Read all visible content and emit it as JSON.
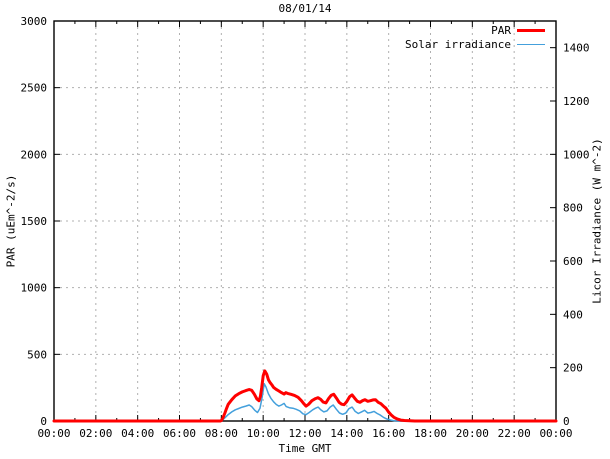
{
  "title": "08/01/14",
  "chart_data": {
    "type": "line",
    "title": "08/01/14",
    "xlabel": "Time GMT",
    "ylabel_left": "PAR (uEm^-2/s)",
    "ylabel_right": "Licor Irradiance (W m^-2)",
    "x_range_hours": [
      0,
      24
    ],
    "x_ticks": [
      {
        "hour": 0,
        "label": "00:00"
      },
      {
        "hour": 2,
        "label": "02:00"
      },
      {
        "hour": 4,
        "label": "04:00"
      },
      {
        "hour": 6,
        "label": "06:00"
      },
      {
        "hour": 8,
        "label": "08:00"
      },
      {
        "hour": 10,
        "label": "10:00"
      },
      {
        "hour": 12,
        "label": "12:00"
      },
      {
        "hour": 14,
        "label": "14:00"
      },
      {
        "hour": 16,
        "label": "16:00"
      },
      {
        "hour": 18,
        "label": "18:00"
      },
      {
        "hour": 20,
        "label": "20:00"
      },
      {
        "hour": 22,
        "label": "22:00"
      },
      {
        "hour": 24,
        "label": "00:00"
      }
    ],
    "x_minor_hours": [
      1,
      3,
      5,
      7,
      9,
      11,
      13,
      15,
      17,
      19,
      21,
      23
    ],
    "y_left": {
      "min": 0,
      "max": 3000,
      "ticks": [
        0,
        500,
        1000,
        1500,
        2000,
        2500,
        3000
      ]
    },
    "y_right": {
      "min": 0,
      "max": 1500,
      "ticks": [
        0,
        200,
        400,
        600,
        800,
        1000,
        1200,
        1400
      ]
    },
    "grid": {
      "color": "#b0b0b0",
      "vertical_hours": [
        2,
        4,
        6,
        8,
        10,
        12,
        14,
        16,
        18,
        20,
        22
      ],
      "horizontal_values": [
        500,
        1000,
        1500,
        2000,
        2500
      ]
    },
    "legend": {
      "position": "top-right"
    },
    "series": [
      {
        "name": "PAR",
        "color": "#ff0000",
        "axis": "left",
        "width": 3,
        "points": [
          [
            0,
            0
          ],
          [
            7.95,
            0
          ],
          [
            8.0,
            3
          ],
          [
            8.08,
            25
          ],
          [
            8.17,
            60
          ],
          [
            8.25,
            95
          ],
          [
            8.33,
            125
          ],
          [
            8.5,
            160
          ],
          [
            8.67,
            188
          ],
          [
            8.83,
            205
          ],
          [
            9.0,
            218
          ],
          [
            9.17,
            228
          ],
          [
            9.33,
            236
          ],
          [
            9.45,
            230
          ],
          [
            9.58,
            200
          ],
          [
            9.7,
            165
          ],
          [
            9.8,
            152
          ],
          [
            9.87,
            185
          ],
          [
            9.93,
            250
          ],
          [
            10.0,
            340
          ],
          [
            10.08,
            376
          ],
          [
            10.17,
            352
          ],
          [
            10.25,
            310
          ],
          [
            10.33,
            288
          ],
          [
            10.42,
            270
          ],
          [
            10.5,
            252
          ],
          [
            10.62,
            238
          ],
          [
            10.75,
            225
          ],
          [
            10.87,
            213
          ],
          [
            11.0,
            202
          ],
          [
            11.08,
            212
          ],
          [
            11.17,
            207
          ],
          [
            11.33,
            200
          ],
          [
            11.5,
            192
          ],
          [
            11.67,
            178
          ],
          [
            11.83,
            152
          ],
          [
            11.95,
            128
          ],
          [
            12.05,
            112
          ],
          [
            12.17,
            125
          ],
          [
            12.33,
            152
          ],
          [
            12.5,
            168
          ],
          [
            12.62,
            175
          ],
          [
            12.75,
            162
          ],
          [
            12.87,
            142
          ],
          [
            13.0,
            136
          ],
          [
            13.13,
            168
          ],
          [
            13.25,
            192
          ],
          [
            13.37,
            200
          ],
          [
            13.5,
            172
          ],
          [
            13.63,
            140
          ],
          [
            13.75,
            126
          ],
          [
            13.87,
            122
          ],
          [
            14.0,
            146
          ],
          [
            14.13,
            182
          ],
          [
            14.25,
            196
          ],
          [
            14.37,
            172
          ],
          [
            14.5,
            148
          ],
          [
            14.63,
            140
          ],
          [
            14.75,
            152
          ],
          [
            14.87,
            160
          ],
          [
            15.0,
            148
          ],
          [
            15.13,
            152
          ],
          [
            15.25,
            158
          ],
          [
            15.37,
            160
          ],
          [
            15.5,
            140
          ],
          [
            15.63,
            130
          ],
          [
            15.75,
            112
          ],
          [
            15.87,
            96
          ],
          [
            16.0,
            66
          ],
          [
            16.13,
            44
          ],
          [
            16.25,
            28
          ],
          [
            16.42,
            14
          ],
          [
            16.58,
            7
          ],
          [
            16.75,
            4
          ],
          [
            17.0,
            2
          ],
          [
            17.25,
            0
          ],
          [
            24,
            0
          ]
        ]
      },
      {
        "name": "Solar irradiance",
        "color": "#44a0dc",
        "axis": "right",
        "width": 1.5,
        "points": [
          [
            0,
            0
          ],
          [
            8.0,
            0
          ],
          [
            8.17,
            12
          ],
          [
            8.33,
            24
          ],
          [
            8.5,
            34
          ],
          [
            8.67,
            42
          ],
          [
            8.83,
            47
          ],
          [
            9.0,
            52
          ],
          [
            9.17,
            56
          ],
          [
            9.33,
            60
          ],
          [
            9.45,
            54
          ],
          [
            9.6,
            40
          ],
          [
            9.73,
            32
          ],
          [
            9.85,
            48
          ],
          [
            9.95,
            88
          ],
          [
            10.05,
            140
          ],
          [
            10.13,
            128
          ],
          [
            10.25,
            102
          ],
          [
            10.37,
            85
          ],
          [
            10.5,
            72
          ],
          [
            10.63,
            62
          ],
          [
            10.75,
            56
          ],
          [
            10.87,
            60
          ],
          [
            11.0,
            66
          ],
          [
            11.1,
            54
          ],
          [
            11.25,
            50
          ],
          [
            11.42,
            48
          ],
          [
            11.58,
            44
          ],
          [
            11.75,
            38
          ],
          [
            11.9,
            27
          ],
          [
            12.05,
            24
          ],
          [
            12.2,
            32
          ],
          [
            12.37,
            42
          ],
          [
            12.5,
            48
          ],
          [
            12.63,
            52
          ],
          [
            12.75,
            42
          ],
          [
            12.9,
            34
          ],
          [
            13.05,
            38
          ],
          [
            13.2,
            52
          ],
          [
            13.35,
            60
          ],
          [
            13.5,
            44
          ],
          [
            13.65,
            30
          ],
          [
            13.8,
            25
          ],
          [
            13.95,
            30
          ],
          [
            14.1,
            46
          ],
          [
            14.25,
            52
          ],
          [
            14.4,
            36
          ],
          [
            14.55,
            28
          ],
          [
            14.7,
            34
          ],
          [
            14.85,
            40
          ],
          [
            15.0,
            30
          ],
          [
            15.15,
            32
          ],
          [
            15.3,
            36
          ],
          [
            15.45,
            28
          ],
          [
            15.6,
            22
          ],
          [
            15.75,
            14
          ],
          [
            15.9,
            8
          ],
          [
            16.05,
            4
          ],
          [
            16.25,
            1
          ],
          [
            16.5,
            0
          ],
          [
            24,
            0
          ]
        ]
      }
    ]
  }
}
